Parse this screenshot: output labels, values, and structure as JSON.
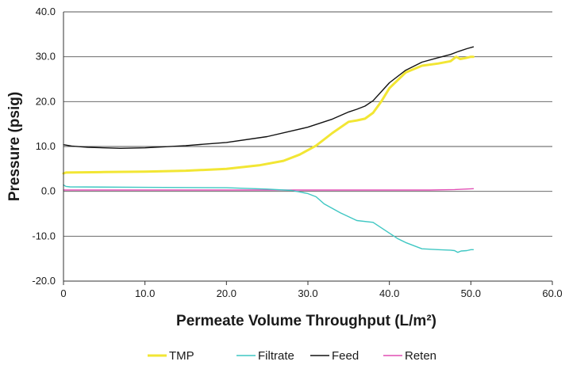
{
  "chart_data": {
    "type": "line",
    "title": "",
    "xlabel": "Permeate Volume Throughput (L/m²)",
    "ylabel": "Pressure (psig)",
    "xlim": [
      0,
      60
    ],
    "ylim": [
      -20,
      40
    ],
    "x_ticks": [
      "0",
      "10.0",
      "20.0",
      "30.0",
      "40.0",
      "50.0",
      "60.0"
    ],
    "y_ticks": [
      "-20.0",
      "-10.0",
      "0.0",
      "10.0",
      "20.0",
      "30.0",
      "40.0"
    ],
    "grid": "horizontal",
    "legend_position": "bottom",
    "series": [
      {
        "name": "TMP",
        "color": "#f2e634",
        "x": [
          0,
          0.3,
          5,
          10,
          15,
          20,
          24,
          27,
          29,
          31,
          33,
          35,
          36,
          37,
          38,
          39,
          40,
          42,
          44,
          46,
          47.5,
          48.2,
          48.7,
          49.3,
          50,
          50.3
        ],
        "y": [
          4.0,
          4.2,
          4.3,
          4.4,
          4.6,
          5.0,
          5.8,
          6.8,
          8.2,
          10.2,
          13.0,
          15.5,
          15.8,
          16.2,
          17.5,
          20.0,
          23.0,
          26.5,
          28.0,
          28.5,
          29.0,
          30.0,
          29.5,
          29.7,
          30.0,
          30.0
        ]
      },
      {
        "name": "Filtrate",
        "color": "#3fc7c3",
        "x": [
          0,
          0.1,
          0.3,
          0.8,
          10,
          20,
          25,
          28,
          30,
          31,
          32,
          34,
          36,
          38,
          40,
          41,
          42,
          44,
          46,
          47.5,
          48,
          48.4,
          48.8,
          49.5,
          50,
          50.3
        ],
        "y": [
          1.5,
          1.3,
          1.1,
          1.0,
          0.9,
          0.8,
          0.5,
          0.2,
          -0.5,
          -1.2,
          -2.8,
          -4.8,
          -6.5,
          -6.9,
          -9.3,
          -10.5,
          -11.4,
          -12.8,
          -13.0,
          -13.1,
          -13.2,
          -13.6,
          -13.3,
          -13.2,
          -13.0,
          -13.0
        ]
      },
      {
        "name": "Feed",
        "color": "#111111",
        "x": [
          0,
          1,
          3,
          5,
          7,
          10,
          15,
          20,
          25,
          30,
          33,
          35,
          36,
          37,
          38,
          39,
          40,
          42,
          44,
          46,
          47.5,
          48.5,
          49.5,
          50.3
        ],
        "y": [
          10.4,
          10.1,
          9.8,
          9.7,
          9.6,
          9.7,
          10.2,
          10.9,
          12.2,
          14.3,
          16.1,
          17.7,
          18.3,
          19.0,
          20.2,
          22.2,
          24.2,
          27.0,
          28.8,
          29.8,
          30.5,
          31.2,
          31.8,
          32.2
        ]
      },
      {
        "name": "Reten",
        "color": "#e04fb4",
        "x": [
          0,
          10,
          20,
          30,
          40,
          45,
          48,
          50.3
        ],
        "y": [
          0.3,
          0.3,
          0.3,
          0.3,
          0.3,
          0.3,
          0.4,
          0.6
        ]
      }
    ]
  }
}
